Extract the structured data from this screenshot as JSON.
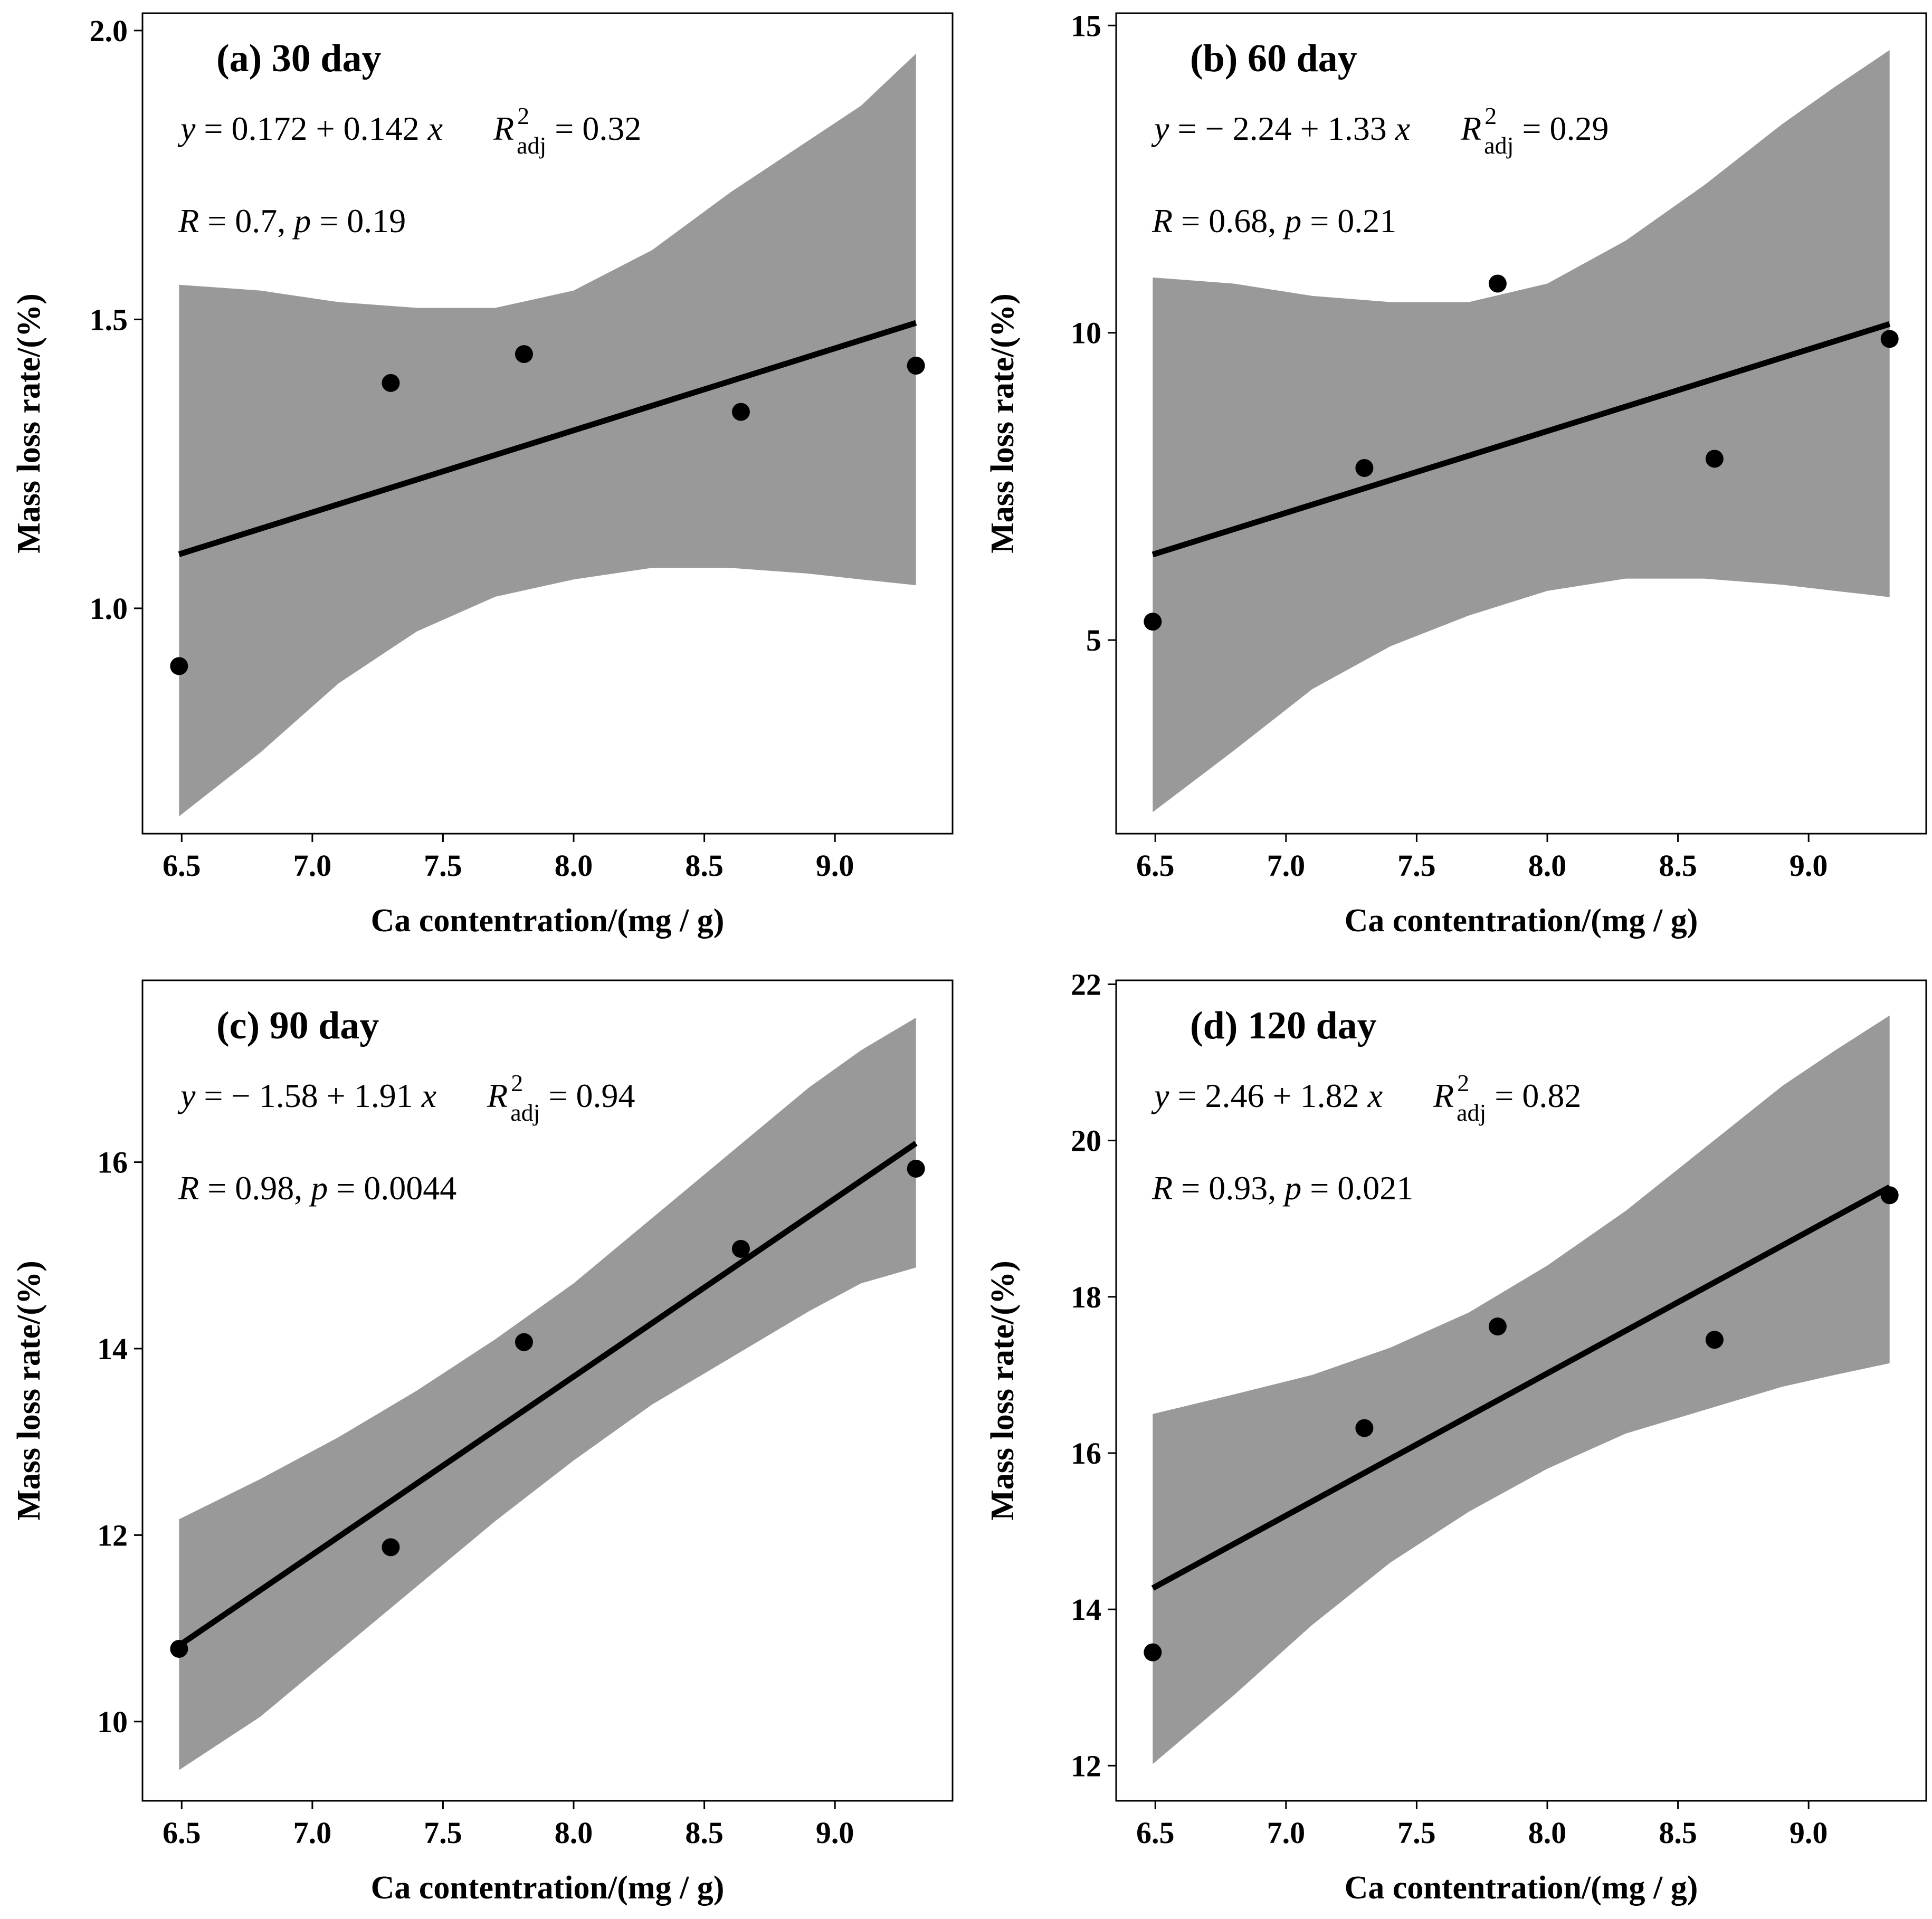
{
  "chart_data": [
    {
      "type": "scatter",
      "title": "(a) 30 day",
      "xlabel": "Ca contentration/(mg / g)",
      "ylabel": "Mass loss rate/(%)",
      "xlim": [
        6.35,
        9.45
      ],
      "ylim": [
        0.61,
        2.03
      ],
      "xticks": [
        6.5,
        7.0,
        7.5,
        8.0,
        8.5,
        9.0
      ],
      "xtick_labels": [
        "6.5",
        "7.0",
        "7.5",
        "8.0",
        "8.5",
        "9.0"
      ],
      "yticks": [
        1.0,
        1.5,
        2.0
      ],
      "ytick_labels": [
        "1.0",
        "1.5",
        "2.0"
      ],
      "points": {
        "x": [
          6.49,
          7.3,
          7.81,
          8.64,
          9.31
        ],
        "y": [
          0.9,
          1.39,
          1.44,
          1.34,
          1.42
        ]
      },
      "fit": {
        "intercept": 0.172,
        "slope": 0.142,
        "x_range": [
          6.49,
          9.31
        ]
      },
      "confidence_band": {
        "x": [
          6.49,
          6.8,
          7.1,
          7.4,
          7.7,
          8.0,
          8.3,
          8.6,
          8.9,
          9.1,
          9.31
        ],
        "upper": [
          1.56,
          1.55,
          1.53,
          1.52,
          1.52,
          1.55,
          1.62,
          1.72,
          1.81,
          1.87,
          1.96
        ],
        "lower": [
          0.64,
          0.75,
          0.87,
          0.96,
          1.02,
          1.05,
          1.07,
          1.07,
          1.06,
          1.05,
          1.04
        ]
      },
      "annotations": {
        "equation": {
          "lhs": "y",
          "eq": " = ",
          "rhs": "0.172 + 0.142 ",
          "var": "x"
        },
        "r2": {
          "R": "R",
          "sup": "2",
          "sub": "adj",
          "value": " = 0.32"
        },
        "stats": {
          "R": "R",
          "r_value": " = 0.7, ",
          "p": "p",
          "p_value": " = 0.19"
        }
      }
    },
    {
      "type": "scatter",
      "title": "(b) 60 day",
      "xlabel": "Ca contentration/(mg / g)",
      "ylabel": "Mass loss rate/(%)",
      "xlim": [
        6.35,
        9.45
      ],
      "ylim": [
        1.85,
        15.2
      ],
      "xticks": [
        6.5,
        7.0,
        7.5,
        8.0,
        8.5,
        9.0
      ],
      "xtick_labels": [
        "6.5",
        "7.0",
        "7.5",
        "8.0",
        "8.5",
        "9.0"
      ],
      "yticks": [
        5,
        10,
        15
      ],
      "ytick_labels": [
        "5",
        "10",
        "15"
      ],
      "points": {
        "x": [
          6.49,
          7.3,
          7.81,
          8.64,
          9.31
        ],
        "y": [
          5.3,
          7.8,
          10.8,
          7.95,
          9.9
        ]
      },
      "fit": {
        "intercept": -2.24,
        "slope": 1.33,
        "x_range": [
          6.49,
          9.31
        ]
      },
      "confidence_band": {
        "x": [
          6.49,
          6.8,
          7.1,
          7.4,
          7.7,
          8.0,
          8.3,
          8.6,
          8.9,
          9.1,
          9.31
        ],
        "upper": [
          10.9,
          10.8,
          10.6,
          10.5,
          10.5,
          10.8,
          11.5,
          12.4,
          13.4,
          14.0,
          14.6
        ],
        "lower": [
          2.2,
          3.2,
          4.2,
          4.9,
          5.4,
          5.8,
          6.0,
          6.0,
          5.9,
          5.8,
          5.7
        ]
      },
      "annotations": {
        "equation": {
          "lhs": "y",
          "eq": " = ",
          "rhs": "− 2.24 + 1.33 ",
          "var": "x"
        },
        "r2": {
          "R": "R",
          "sup": "2",
          "sub": "adj",
          "value": " = 0.29"
        },
        "stats": {
          "R": "R",
          "r_value": " = 0.68, ",
          "p": "p",
          "p_value": " = 0.21"
        }
      }
    },
    {
      "type": "scatter",
      "title": "(c) 90 day",
      "xlabel": "Ca contentration/(mg / g)",
      "ylabel": "Mass loss rate/(%)",
      "xlim": [
        6.35,
        9.45
      ],
      "ylim": [
        9.15,
        17.95
      ],
      "xticks": [
        6.5,
        7.0,
        7.5,
        8.0,
        8.5,
        9.0
      ],
      "xtick_labels": [
        "6.5",
        "7.0",
        "7.5",
        "8.0",
        "8.5",
        "9.0"
      ],
      "yticks": [
        10,
        12,
        14,
        16
      ],
      "ytick_labels": [
        "10",
        "12",
        "14",
        "16"
      ],
      "points": {
        "x": [
          6.49,
          7.3,
          7.81,
          8.64,
          9.31
        ],
        "y": [
          10.78,
          11.87,
          14.07,
          15.07,
          15.93
        ]
      },
      "fit": {
        "intercept": -1.58,
        "slope": 1.91,
        "x_range": [
          6.49,
          9.31
        ]
      },
      "confidence_band": {
        "x": [
          6.49,
          6.8,
          7.1,
          7.4,
          7.7,
          8.0,
          8.3,
          8.6,
          8.9,
          9.1,
          9.31
        ],
        "upper": [
          12.17,
          12.6,
          13.05,
          13.55,
          14.1,
          14.7,
          15.4,
          16.1,
          16.8,
          17.2,
          17.55
        ],
        "lower": [
          9.48,
          10.05,
          10.75,
          11.45,
          12.15,
          12.8,
          13.4,
          13.9,
          14.4,
          14.7,
          14.87
        ]
      },
      "annotations": {
        "equation": {
          "lhs": "y",
          "eq": " = ",
          "rhs": "− 1.58 + 1.91 ",
          "var": "x"
        },
        "r2": {
          "R": "R",
          "sup": "2",
          "sub": "adj",
          "value": " = 0.94"
        },
        "stats": {
          "R": "R",
          "r_value": " = 0.98, ",
          "p": "p",
          "p_value": " = 0.0044"
        }
      }
    },
    {
      "type": "scatter",
      "title": "(d) 120 day",
      "xlabel": "Ca contentration/(mg / g)",
      "ylabel": "Mass loss rate/(%)",
      "xlim": [
        6.35,
        9.45
      ],
      "ylim": [
        11.55,
        22.05
      ],
      "xticks": [
        6.5,
        7.0,
        7.5,
        8.0,
        8.5,
        9.0
      ],
      "xtick_labels": [
        "6.5",
        "7.0",
        "7.5",
        "8.0",
        "8.5",
        "9.0"
      ],
      "yticks": [
        12,
        14,
        16,
        18,
        20,
        22
      ],
      "ytick_labels": [
        "12",
        "14",
        "16",
        "18",
        "20",
        "22"
      ],
      "points": {
        "x": [
          6.49,
          7.3,
          7.81,
          8.64,
          9.31
        ],
        "y": [
          13.45,
          16.32,
          17.62,
          17.45,
          19.3
        ]
      },
      "fit": {
        "intercept": 2.46,
        "slope": 1.82,
        "x_range": [
          6.49,
          9.31
        ]
      },
      "confidence_band": {
        "x": [
          6.49,
          6.8,
          7.1,
          7.4,
          7.7,
          8.0,
          8.3,
          8.6,
          8.9,
          9.1,
          9.31
        ],
        "upper": [
          16.5,
          16.75,
          17.0,
          17.35,
          17.8,
          18.4,
          19.1,
          19.9,
          20.7,
          21.15,
          21.6
        ],
        "lower": [
          12.02,
          12.9,
          13.8,
          14.6,
          15.25,
          15.8,
          16.25,
          16.55,
          16.85,
          17.0,
          17.15
        ]
      },
      "annotations": {
        "equation": {
          "lhs": "y",
          "eq": " = ",
          "rhs": "2.46 + 1.82 ",
          "var": "x"
        },
        "r2": {
          "R": "R",
          "sup": "2",
          "sub": "adj",
          "value": " = 0.82"
        },
        "stats": {
          "R": "R",
          "r_value": " = 0.93, ",
          "p": "p",
          "p_value": " = 0.021"
        }
      }
    }
  ],
  "colors": {
    "band": "#999999",
    "line": "#000000",
    "point": "#000000",
    "axis": "#000000"
  }
}
